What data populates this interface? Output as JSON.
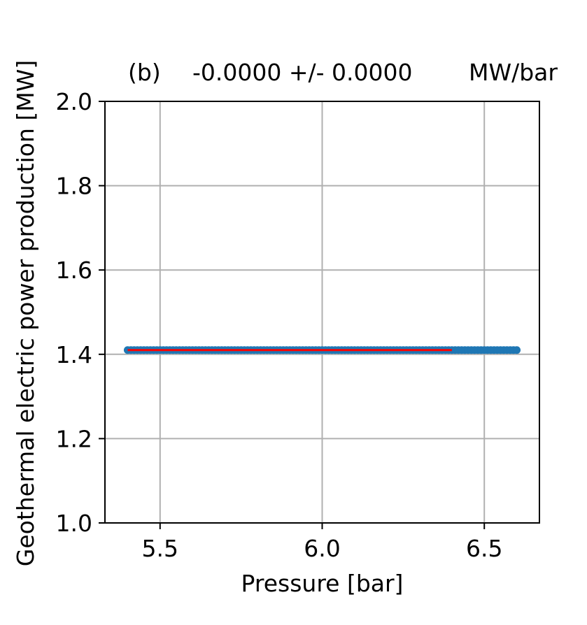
{
  "chart_data": {
    "type": "scatter",
    "title": {
      "panel": "(b)",
      "value": "-0.0000 +/- 0.0000",
      "unit": "MW/bar"
    },
    "xlabel": "Pressure [bar]",
    "ylabel": "Geothermal electric power production [MW]",
    "xlim": [
      5.33,
      6.67
    ],
    "ylim": [
      1.0,
      2.0
    ],
    "xticks": [
      5.5,
      6.0,
      6.5
    ],
    "xtick_labels": [
      "5.5",
      "6.0",
      "6.5"
    ],
    "yticks": [
      1.0,
      1.2,
      1.4,
      1.6,
      1.8,
      2.0
    ],
    "ytick_labels": [
      "1.0",
      "1.2",
      "1.4",
      "1.6",
      "1.8",
      "2.0"
    ],
    "grid": true,
    "series": [
      {
        "kind": "scatter",
        "color": "#1f77b4",
        "x_range": [
          5.4,
          6.6
        ],
        "n_points": 121,
        "y": 1.41
      },
      {
        "kind": "fit_line",
        "color": "#ff0000",
        "x": [
          5.4,
          6.4
        ],
        "y": [
          1.41,
          1.41
        ]
      }
    ]
  }
}
